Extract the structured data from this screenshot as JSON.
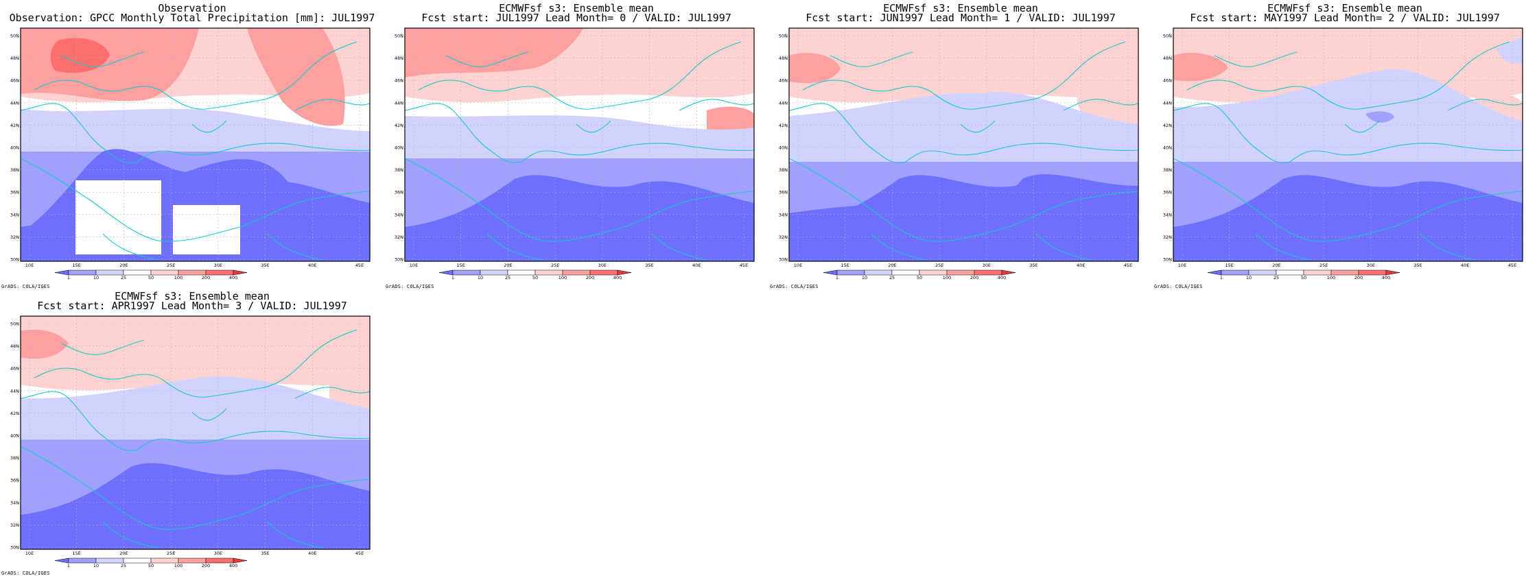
{
  "colors": {
    "coast": "#19c8c8",
    "grid": "#b4b4b4",
    "frame": "#000000",
    "levels": [
      "#6e6eff",
      "#a0a0ff",
      "#d2d2ff",
      "#ffffff",
      "#ffd2d2",
      "#ffa0a0",
      "#ff6e6e",
      "#e63c3c"
    ]
  },
  "map": {
    "lat_labels": [
      "30N",
      "32N",
      "34N",
      "36N",
      "38N",
      "40N",
      "42N",
      "44N",
      "46N",
      "48N",
      "50N"
    ],
    "lon_labels": [
      "10E",
      "15E",
      "20E",
      "25E",
      "30E",
      "35E",
      "40E",
      "45E"
    ]
  },
  "colorbar": {
    "ticks": [
      "1",
      "10",
      "25",
      "50",
      "100",
      "200",
      "400"
    ]
  },
  "credit": "GrADS: COLA/IGES",
  "panels": [
    {
      "line1": "Observation",
      "line2": "Observation: GPCC Monthly Total Precipitation [mm]: JUL1997",
      "masked": true
    },
    {
      "line1": "ECMWFsf s3: Ensemble mean",
      "line2": "Fcst start: JUL1997  Lead Month= 0 / VALID: JUL1997",
      "masked": false
    },
    {
      "line1": "ECMWFsf s3: Ensemble mean",
      "line2": "Fcst start: JUN1997  Lead Month= 1 / VALID: JUL1997",
      "masked": false
    },
    {
      "line1": "ECMWFsf s3: Ensemble mean",
      "line2": "Fcst start: MAY1997  Lead Month= 2 / VALID: JUL1997",
      "masked": false
    },
    {
      "line1": "ECMWFsf s3: Ensemble mean",
      "line2": "Fcst start: APR1997  Lead Month= 3 / VALID: JUL1997",
      "masked": false
    }
  ]
}
